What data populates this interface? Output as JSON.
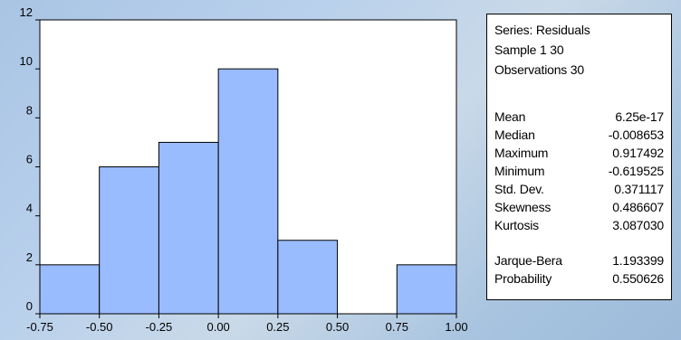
{
  "chart_data": {
    "type": "bar",
    "bins": [
      {
        "start": -0.75,
        "end": -0.5,
        "count": 2
      },
      {
        "start": -0.5,
        "end": -0.25,
        "count": 6
      },
      {
        "start": -0.25,
        "end": 0.0,
        "count": 7
      },
      {
        "start": 0.0,
        "end": 0.25,
        "count": 10
      },
      {
        "start": 0.25,
        "end": 0.5,
        "count": 3
      },
      {
        "start": 0.5,
        "end": 0.75,
        "count": 0
      },
      {
        "start": 0.75,
        "end": 1.0,
        "count": 2
      }
    ],
    "x_ticks": [
      "-0.75",
      "-0.50",
      "-0.25",
      "0.00",
      "0.25",
      "0.50",
      "0.75",
      "1.00"
    ],
    "y_ticks": [
      "0",
      "2",
      "4",
      "6",
      "8",
      "10",
      "12"
    ],
    "xlim": [
      -0.75,
      1.0
    ],
    "ylim": [
      0,
      12
    ],
    "title": "",
    "xlabel": "",
    "ylabel": "",
    "grid": false,
    "bar_color": "#99bbff"
  },
  "stats": {
    "series_line": "Series: Residuals",
    "sample_line": "Sample 1 30",
    "observations_line": "Observations 30",
    "group1": [
      {
        "label": "Mean",
        "value": "6.25e-17"
      },
      {
        "label": "Median",
        "value": "-0.008653"
      },
      {
        "label": "Maximum",
        "value": "0.917492"
      },
      {
        "label": "Minimum",
        "value": "-0.619525"
      },
      {
        "label": "Std. Dev.",
        "value": "0.371117"
      },
      {
        "label": "Skewness",
        "value": "0.486607"
      },
      {
        "label": "Kurtosis",
        "value": "3.087030"
      }
    ],
    "group2": [
      {
        "label": "Jarque-Bera",
        "value": "1.193399"
      },
      {
        "label": "Probability",
        "value": "0.550626"
      }
    ]
  }
}
